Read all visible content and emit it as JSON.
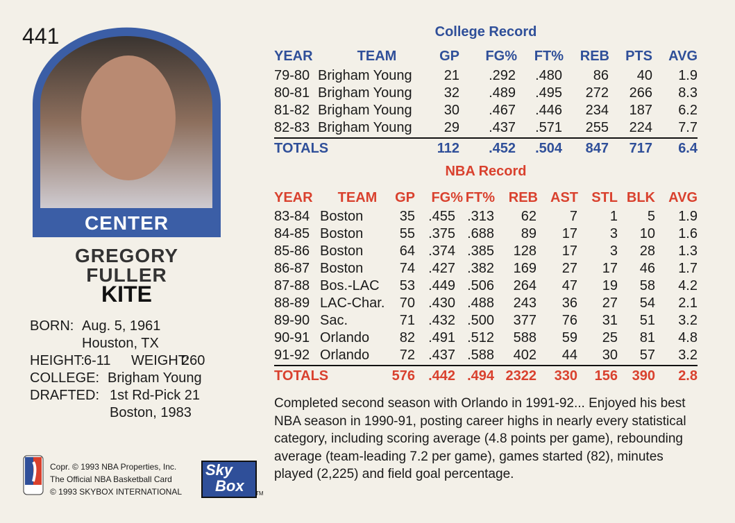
{
  "card_number": "441",
  "position": "CENTER",
  "name": [
    "GREGORY",
    "FULLER",
    "KITE"
  ],
  "bio": {
    "born": {
      "label": "BORN:",
      "lines": [
        "Aug. 5, 1961",
        "Houston, TX"
      ]
    },
    "height": {
      "label": "HEIGHT:",
      "value": "6-11"
    },
    "weight": {
      "label": "WEIGHT:",
      "value": "260"
    },
    "college": {
      "label": "COLLEGE:",
      "value": "Brigham Young"
    },
    "drafted": {
      "label": "DRAFTED:",
      "lines": [
        "1st Rd-Pick 21",
        "Boston, 1983"
      ]
    }
  },
  "college_record": {
    "title": "College Record",
    "headers": [
      "YEAR",
      "TEAM",
      "GP",
      "FG%",
      "FT%",
      "REB",
      "PTS",
      "AVG"
    ],
    "rows": [
      [
        "79-80",
        "Brigham Young",
        "21",
        ".292",
        ".480",
        "86",
        "40",
        "1.9"
      ],
      [
        "80-81",
        "Brigham Young",
        "32",
        ".489",
        ".495",
        "272",
        "266",
        "8.3"
      ],
      [
        "81-82",
        "Brigham Young",
        "30",
        ".467",
        ".446",
        "234",
        "187",
        "6.2"
      ],
      [
        "82-83",
        "Brigham Young",
        "29",
        ".437",
        ".571",
        "255",
        "224",
        "7.7"
      ]
    ],
    "totals": [
      "TOTALS",
      "112",
      ".452",
      ".504",
      "847",
      "717",
      "6.4"
    ]
  },
  "nba_record": {
    "title": "NBA Record",
    "headers": [
      "YEAR",
      "TEAM",
      "GP",
      "FG%",
      "FT%",
      "REB",
      "AST",
      "STL",
      "BLK",
      "AVG"
    ],
    "rows": [
      [
        "83-84",
        "Boston",
        "35",
        ".455",
        ".313",
        "62",
        "7",
        "1",
        "5",
        "1.9"
      ],
      [
        "84-85",
        "Boston",
        "55",
        ".375",
        ".688",
        "89",
        "17",
        "3",
        "10",
        "1.6"
      ],
      [
        "85-86",
        "Boston",
        "64",
        ".374",
        ".385",
        "128",
        "17",
        "3",
        "28",
        "1.3"
      ],
      [
        "86-87",
        "Boston",
        "74",
        ".427",
        ".382",
        "169",
        "27",
        "17",
        "46",
        "1.7"
      ],
      [
        "87-88",
        "Bos.-LAC",
        "53",
        ".449",
        ".506",
        "264",
        "47",
        "19",
        "58",
        "4.2"
      ],
      [
        "88-89",
        "LAC-Char.",
        "70",
        ".430",
        ".488",
        "243",
        "36",
        "27",
        "54",
        "2.1"
      ],
      [
        "89-90",
        "Sac.",
        "71",
        ".432",
        ".500",
        "377",
        "76",
        "31",
        "51",
        "3.2"
      ],
      [
        "90-91",
        "Orlando",
        "82",
        ".491",
        ".512",
        "588",
        "59",
        "25",
        "81",
        "4.8"
      ],
      [
        "91-92",
        "Orlando",
        "72",
        ".437",
        ".588",
        "402",
        "44",
        "30",
        "57",
        "3.2"
      ]
    ],
    "totals": [
      "TOTALS",
      "576",
      ".442",
      ".494",
      "2322",
      "330",
      "156",
      "390",
      "2.8"
    ]
  },
  "summary": "Completed second season with Orlando in 1991-92... Enjoyed his best NBA season in 1990-91, posting career highs in nearly every statistical category, including scoring average (4.8 points per game), rebounding average (team-leading 7.2 per game), games started (82), minutes played (2,225) and field goal percentage.",
  "footer": {
    "copyright": [
      "Copr. © 1993 NBA Properties, Inc.",
      "The Official NBA Basketball Card",
      "© 1993 SKYBOX INTERNATIONAL"
    ],
    "logo": [
      "Sky",
      "Box"
    ],
    "trademark": "TM"
  }
}
